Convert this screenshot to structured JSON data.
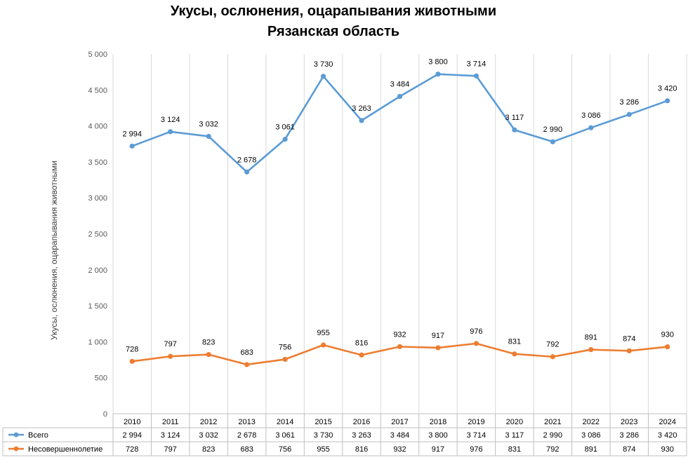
{
  "chart_data": {
    "type": "line",
    "title": "Укусы, ослюнения, оцарапывания животными",
    "subtitle": "Рязанская область",
    "ylabel": "Укусы, ослюнения, оцарапывания животными",
    "xlabel": "",
    "ylim": [
      0,
      5000
    ],
    "yticks": [
      "0",
      "500",
      "1 000",
      "1 500",
      "2 000",
      "2 500",
      "3 000",
      "3 500",
      "4 000",
      "4 500",
      "5 000"
    ],
    "categories": [
      "2010",
      "2011",
      "2012",
      "2013",
      "2014",
      "2015",
      "2016",
      "2017",
      "2018",
      "2019",
      "2020",
      "2021",
      "2022",
      "2023",
      "2024"
    ],
    "grid": "vertical",
    "legend": "data table below chart",
    "series": [
      {
        "name": "Всего",
        "color": "#5B9BD5",
        "point_values": [
          3720,
          3920,
          3855,
          3360,
          3815,
          4690,
          4075,
          4410,
          4720,
          4695,
          3945,
          3780,
          3975,
          4160,
          4350
        ],
        "labels": [
          "2 994",
          "3 124",
          "3 032",
          "2 678",
          "3 061",
          "3 730",
          "3 263",
          "3 484",
          "3 800",
          "3 714",
          "3 117",
          "2 990",
          "3 086",
          "3 286",
          "3 420"
        ]
      },
      {
        "name": "Несовершеннолетие",
        "color": "#ED7D31",
        "point_values": [
          728,
          797,
          823,
          683,
          756,
          955,
          816,
          932,
          917,
          976,
          831,
          792,
          891,
          874,
          930
        ],
        "labels": [
          "728",
          "797",
          "823",
          "683",
          "756",
          "955",
          "816",
          "932",
          "917",
          "976",
          "831",
          "792",
          "891",
          "874",
          "930"
        ]
      }
    ]
  }
}
